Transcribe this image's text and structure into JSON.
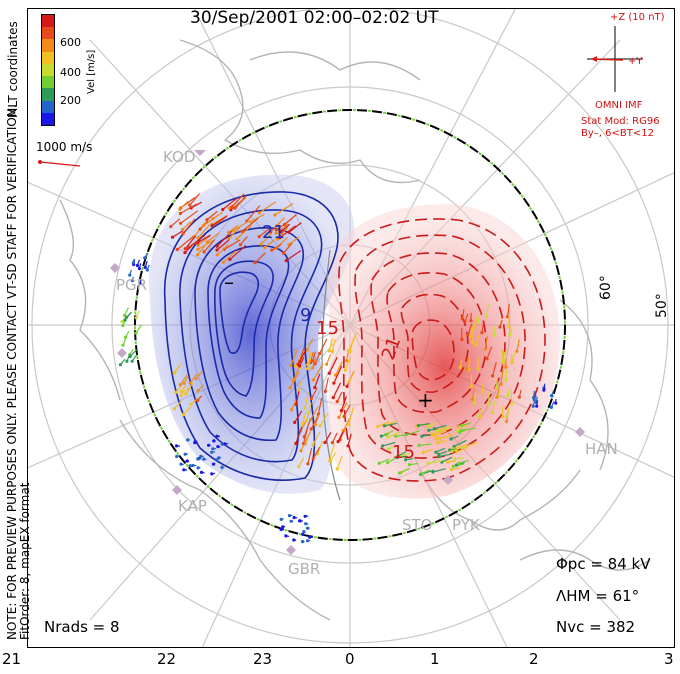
{
  "title": "30/Sep/2001  02:00–02:02  UT",
  "colorbar": {
    "label": "Vel [m/s]",
    "ticks": [
      "600",
      "400",
      "200"
    ],
    "colors": [
      "#1a18e8",
      "#2266c8",
      "#2e9a5a",
      "#6fd030",
      "#c8dc30",
      "#f2c020",
      "#f08a18",
      "#e84a18",
      "#d61818"
    ]
  },
  "coord_label": "MLT coordinates",
  "scale_vector": {
    "label": "1000 m/s",
    "color": "#d61818"
  },
  "imf": {
    "z_label": "+Z (10 nT)",
    "y_label": "+Y",
    "source": "OMNI IMF",
    "model": "Stat Mod: RG96",
    "condition": "By–, 6<BT<12"
  },
  "radar_labels": [
    "KOD",
    "PGR",
    "KAP",
    "GBR",
    "STO",
    "PYK",
    "HAN"
  ],
  "latitude_labels": [
    "60°",
    "50°"
  ],
  "contour_labels": [
    "21",
    "9",
    "15",
    "21",
    "15"
  ],
  "potential_markers": {
    "min": "–",
    "max": "+"
  },
  "side_note_1": "NOTE: FOR PREVIEW PURPOSES ONLY. PLEASE CONTACT VT-SD STAFF FOR VERIFICATION.",
  "side_note_2": "FitOrder: 8,  mapEX format",
  "stats": {
    "phi_pc": "Φpc  =  84  kV",
    "lambda_hm": "ΛHM  =  61°",
    "n_vc": "Nvc  =  382",
    "n_rads": "Nrads  =  8"
  },
  "x_axis_ticks": [
    "21",
    "22",
    "23",
    "0",
    "1",
    "2",
    "3"
  ],
  "contour_colors": {
    "negative": "#1a2aa8",
    "positive": "#cc1a1a",
    "boundary": "#000000",
    "hm_dash": "#7ccf3c"
  }
}
